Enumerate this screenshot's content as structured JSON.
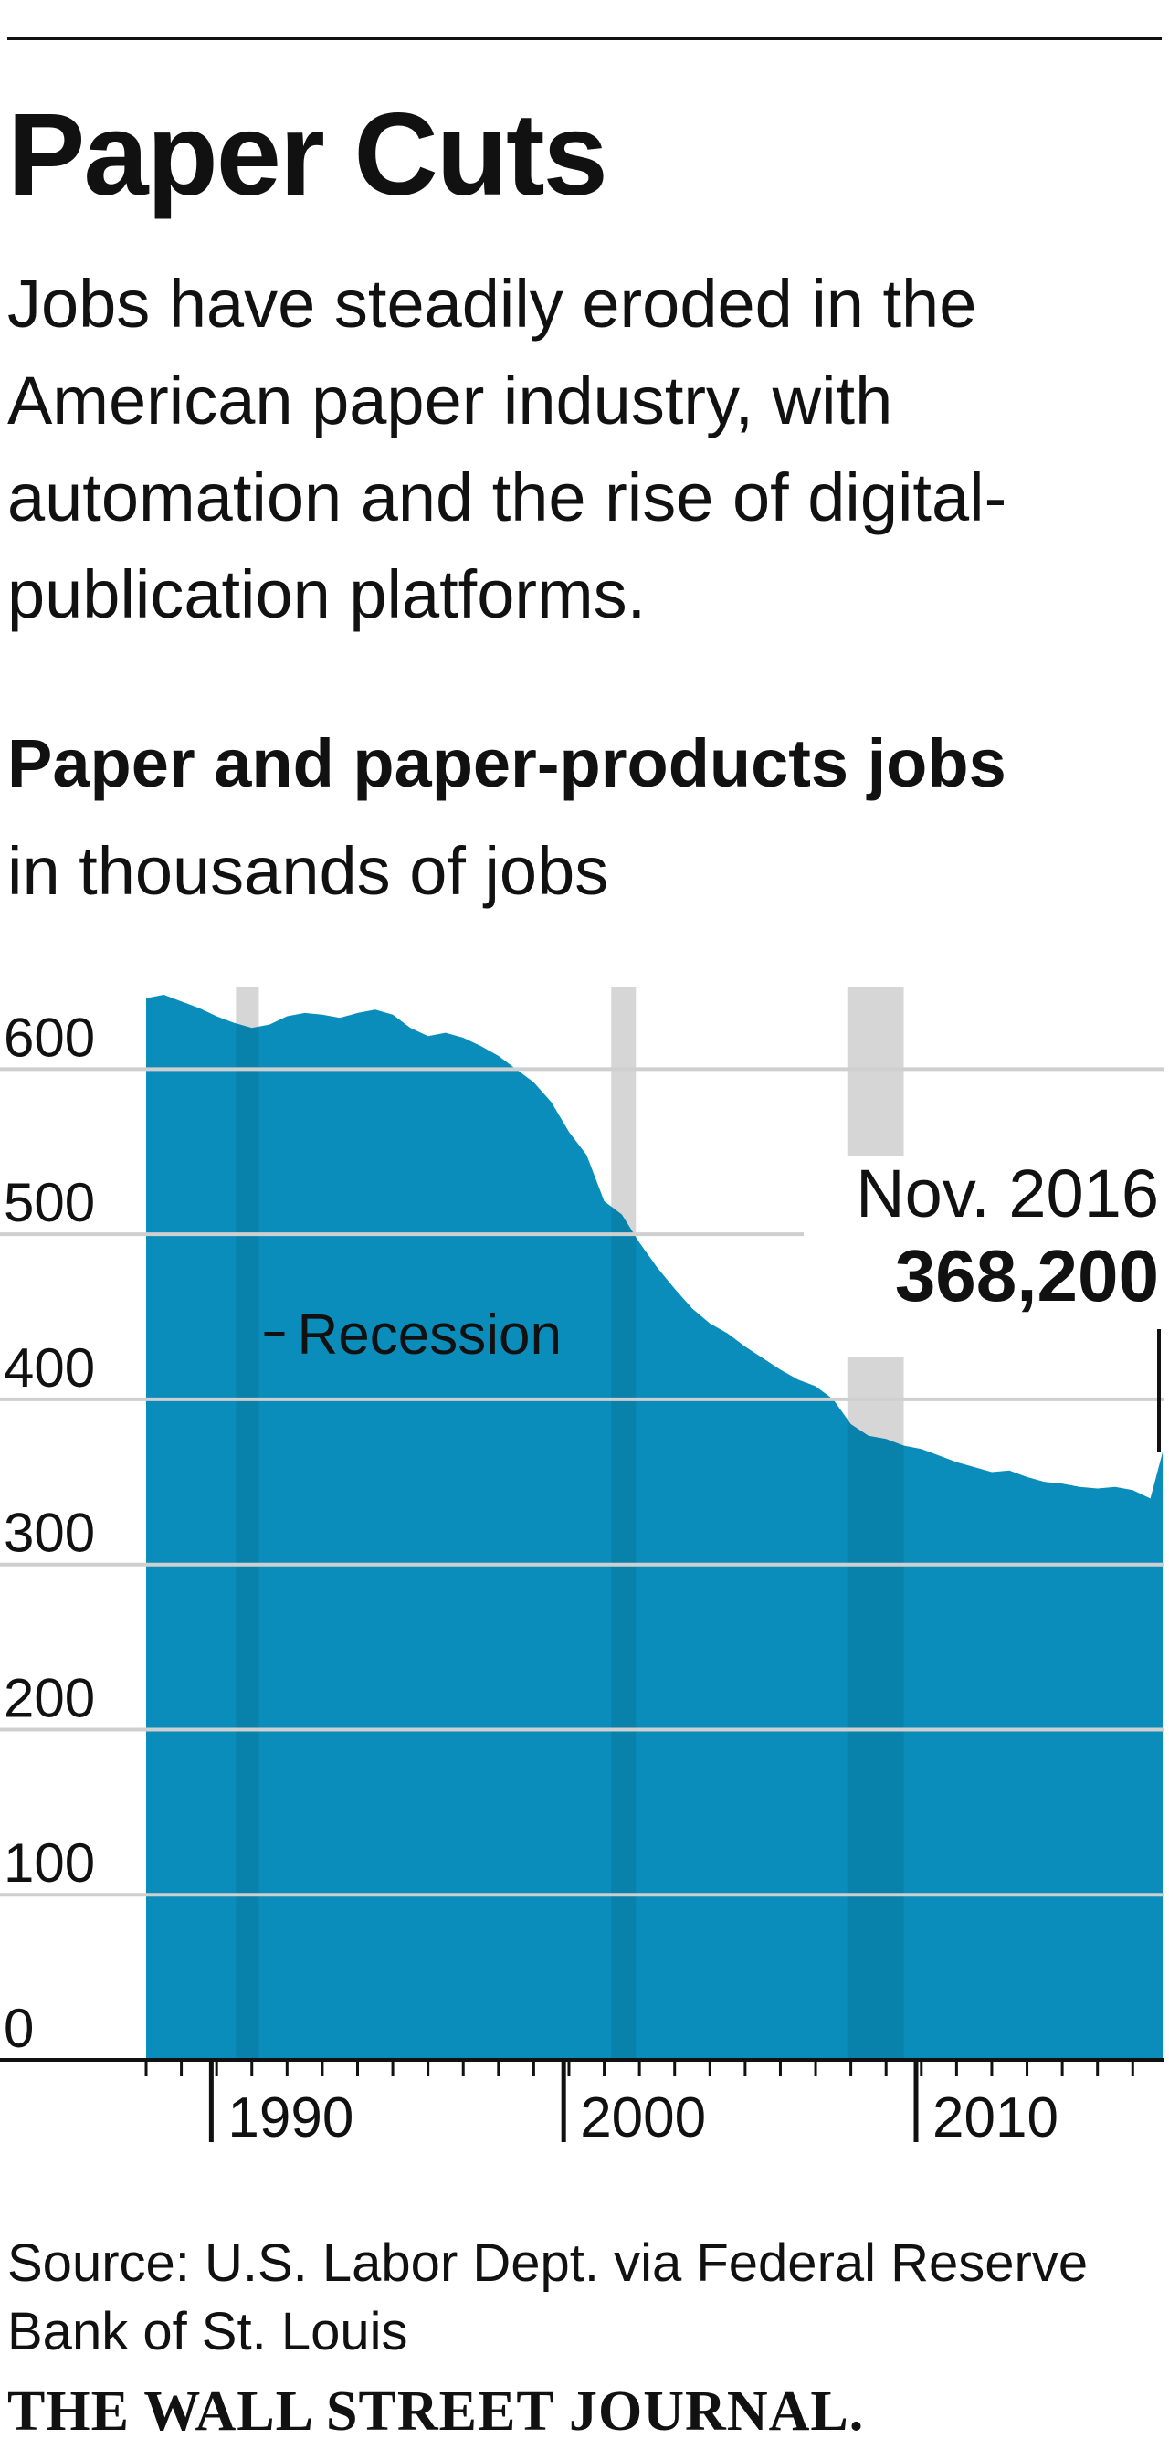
{
  "headline": "Paper Cuts",
  "dek": "Jobs have steadily eroded in the American paper industry, with automation and the rise of digital-publication platforms.",
  "chart_title": "Paper and paper-products jobs",
  "chart_subtitle": "in thousands of jobs",
  "source": "Source: U.S. Labor Dept. via Federal Reserve Bank of St. Louis",
  "credit": "THE WALL STREET JOURNAL.",
  "colors": {
    "area": "#0a8dba",
    "recession_band": "#d6d6d6",
    "recession_overlap": "#07789e",
    "gridline": "#cfcfcf",
    "text": "#111111"
  },
  "chart_data": {
    "type": "area",
    "title": "Paper and paper-products jobs",
    "subtitle": "in thousands of jobs",
    "ylabel": "",
    "xlabel": "",
    "ylim": [
      0,
      650
    ],
    "xlim": [
      1988.0,
      2016.9
    ],
    "y_ticks": [
      0,
      100,
      200,
      300,
      400,
      500,
      600
    ],
    "y_tick_labels": [
      "0",
      "100",
      "200",
      "300",
      "400",
      "500",
      "600"
    ],
    "x_ticks": [
      1990,
      2000,
      2010
    ],
    "x_tick_labels": [
      "1990",
      "2000",
      "2010"
    ],
    "x_minor_ticks": [
      1988,
      1989,
      1990,
      1991,
      1992,
      1993,
      1994,
      1995,
      1996,
      1997,
      1998,
      1999,
      2000,
      2001,
      2002,
      2003,
      2004,
      2005,
      2006,
      2007,
      2008,
      2009,
      2010,
      2011,
      2012,
      2013,
      2014,
      2015,
      2016
    ],
    "grid": true,
    "recession_label": "Recession",
    "recessions": [
      {
        "start": 1990.55,
        "end": 1991.2
      },
      {
        "start": 2001.2,
        "end": 2001.9
      },
      {
        "start": 2007.9,
        "end": 2009.5
      }
    ],
    "annotation": {
      "label": "Nov. 2016",
      "value_label": "368,200",
      "x": 2016.85,
      "y": 368.2
    },
    "series": [
      {
        "x": [
          1988.0,
          1988.5,
          1989.0,
          1989.5,
          1990.0,
          1990.5,
          1991.0,
          1991.5,
          1992.0,
          1992.5,
          1993.0,
          1993.5,
          1994.0,
          1994.5,
          1995.0,
          1995.5,
          1996.0,
          1996.5,
          1997.0,
          1997.5,
          1998.0,
          1998.5,
          1999.0,
          1999.5,
          2000.0,
          2000.5,
          2001.0,
          2001.5,
          2002.0,
          2002.5,
          2003.0,
          2003.5,
          2004.0,
          2004.5,
          2005.0,
          2005.5,
          2006.0,
          2006.5,
          2007.0,
          2007.5,
          2008.0,
          2008.5,
          2009.0,
          2009.5,
          2010.0,
          2010.5,
          2011.0,
          2011.5,
          2012.0,
          2012.5,
          2013.0,
          2013.5,
          2014.0,
          2014.5,
          2015.0,
          2015.5,
          2016.0,
          2016.5,
          2016.85
        ],
        "y": [
          643,
          645,
          641,
          637,
          632,
          628,
          625,
          627,
          632,
          634,
          633,
          631,
          634,
          636,
          633,
          625,
          620,
          622,
          619,
          614,
          608,
          600,
          592,
          580,
          562,
          548,
          520,
          512,
          495,
          480,
          467,
          455,
          446,
          440,
          432,
          425,
          418,
          412,
          408,
          400,
          385,
          378,
          376,
          372,
          370,
          366,
          362,
          359,
          356,
          357,
          353,
          350,
          349,
          347,
          346,
          347,
          345,
          340,
          368.2
        ]
      }
    ]
  }
}
